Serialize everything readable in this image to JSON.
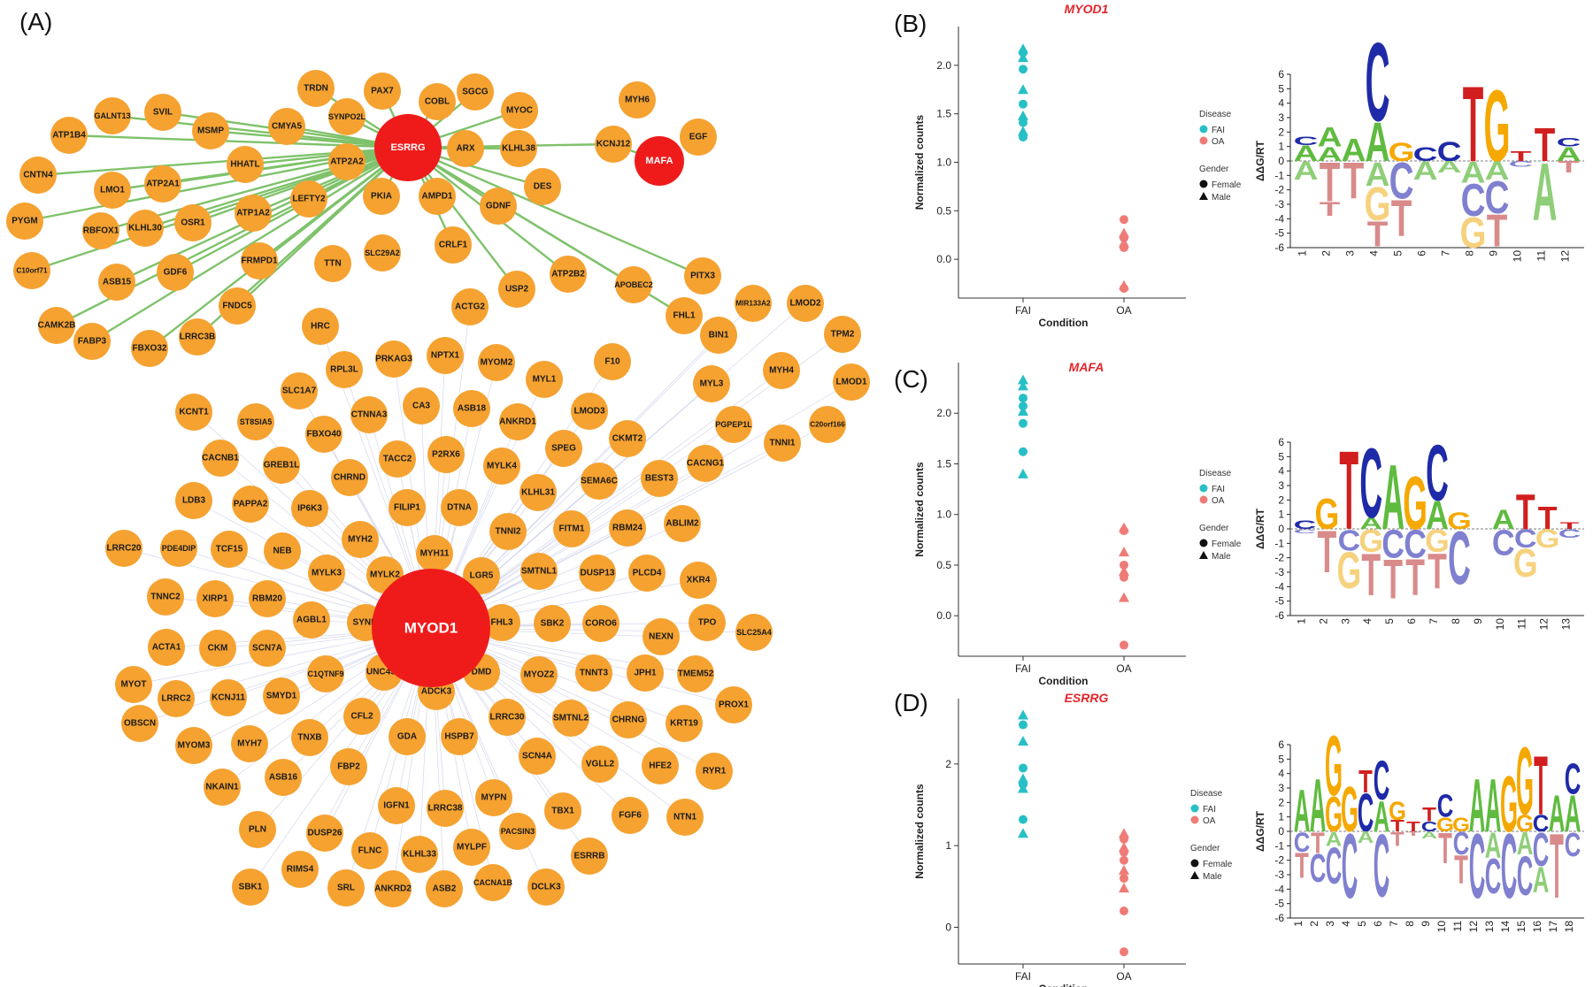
{
  "panels": {
    "A": "(A)",
    "B": "(B)",
    "C": "(C)",
    "D": "(D)"
  },
  "colors": {
    "node": "#f5a231",
    "hub": "#ef1b1b",
    "edge_green": "#7fc26b",
    "edge_faint": "#c9cde8",
    "fai": "#27bfc6",
    "oa": "#ef7b76",
    "title_red": "#e3262b"
  },
  "network": {
    "hubs": [
      {
        "id": "ESRRG",
        "label": "ESRRG"
      },
      {
        "id": "MAFA",
        "label": "MAFA"
      },
      {
        "id": "MYOD1",
        "label": "MYOD1"
      }
    ],
    "esrrg_targets": [
      "GALNT13",
      "SVIL",
      "MSMP",
      "CMYA5",
      "ATP1B4",
      "HHATL",
      "CNTN4",
      "LMO1",
      "ATP2A1",
      "ATP2A2",
      "PYGM",
      "RBFOX1",
      "KLHL30",
      "OSR1",
      "ATP1A2",
      "LEFTY2",
      "C10orf71",
      "ASB15",
      "GDF6",
      "FRMPD1",
      "CAMK2B",
      "FABP3",
      "FBXO32",
      "LRRC3B",
      "FNDC5",
      "PKIA",
      "AMPD1",
      "ARX",
      "KLHL38",
      "SYNPO2L",
      "PAX7",
      "TRDN",
      "COBL",
      "SGCG",
      "MYOC",
      "DES",
      "GDNF",
      "CRLF1",
      "USP2",
      "ATP2B2",
      "APOBEC2",
      "PITX3",
      "FHL1",
      "KCNJ12"
    ],
    "nodes": [
      "TRDN",
      "PAX7",
      "COBL",
      "SGCG",
      "SYNPO2L",
      "MYOC",
      "MYH6",
      "SVIL",
      "GALNT13",
      "MSMP",
      "CMYA5",
      "ARX",
      "KLHL38",
      "KCNJ12",
      "EGF",
      "ATP1B4",
      "HHATL",
      "ATP2A2",
      "DES",
      "CNTN4",
      "LMO1",
      "ATP2A1",
      "PKIA",
      "AMPD1",
      "GDNF",
      "PYGM",
      "RBFOX1",
      "KLHL30",
      "OSR1",
      "ATP1A2",
      "LEFTY2",
      "CRLF1",
      "C10orf71",
      "SLC29A2",
      "ASB15",
      "GDF6",
      "FRMPD1",
      "TTN",
      "APOBEC2",
      "PITX3",
      "USP2",
      "ATP2B2",
      "CAMK2B",
      "FNDC5",
      "ACTG2",
      "FABP3",
      "FBXO32",
      "LRRC3B",
      "HRC",
      "FHL1",
      "MIR133A2",
      "LMOD2",
      "BIN1",
      "TPM2",
      "RPL3L",
      "PRKAG3",
      "NPTX1",
      "MYOM2",
      "F10",
      "MYH4",
      "LMOD1",
      "MYL1",
      "MYL3",
      "KCNT1",
      "SLC1A7",
      "ST8SIA5",
      "CTNNA3",
      "CA3",
      "ASB18",
      "ANKRD1",
      "LMOD3",
      "PGPEP1L",
      "C20orf166",
      "TNNI1",
      "FBXO40",
      "CKMT2",
      "CACNB1",
      "GREB1L",
      "CHRND",
      "TACC2",
      "P2RX6",
      "MYLK4",
      "SPEG",
      "SEMA6C",
      "BEST3",
      "CACNG1",
      "LDB3",
      "PAPPA2",
      "IP6K3",
      "FILIP1",
      "DTNA",
      "KLHL31",
      "FITM1",
      "RBM24",
      "ABLIM2",
      "LRRC20",
      "PDE4DIP",
      "TCF15",
      "NEB",
      "MYH2",
      "MYH11",
      "TNNI2",
      "SMTNL1",
      "DUSP13",
      "PLCD4",
      "XKR4",
      "TNNC2",
      "XIRP1",
      "RBM20",
      "MYLK3",
      "MYLK2",
      "LGR5",
      "TPO",
      "SLC25A4",
      "AGBL1",
      "SYNM",
      "FHL3",
      "SBK2",
      "CORO6",
      "NEXN",
      "ACTA1",
      "CKM",
      "SCN7A",
      "C1QTNF9",
      "UNC45B",
      "DMD",
      "MYOZ2",
      "TNNT3",
      "JPH1",
      "TMEM52",
      "MYOT",
      "LRRC2",
      "KCNJ11",
      "SMYD1",
      "ADCK3",
      "LRRC30",
      "SMTNL2",
      "CHRNG",
      "KRT19",
      "PROX1",
      "OBSCN",
      "MYOM3",
      "MYH7",
      "TNXB",
      "CFL2",
      "GDA",
      "HSPB7",
      "SCN4A",
      "VGLL2",
      "HFE2",
      "RYR1",
      "NKAIN1",
      "ASB16",
      "FBP2",
      "IGFN1",
      "LRRC38",
      "MYPN",
      "TBX1",
      "FGF6",
      "NTN1",
      "PLN",
      "DUSP26",
      "FLNC",
      "KLHL33",
      "MYLPF",
      "PACSIN3",
      "ESRRB",
      "RIMS4",
      "SRL",
      "ANKRD2",
      "ASB2",
      "CACNA1B",
      "DCLK3",
      "SBK1"
    ]
  },
  "chart_data": [
    {
      "type": "scatter",
      "panel": "(B)",
      "title": "MYOD1",
      "xlabel": "Condition",
      "ylabel": "Normalized counts",
      "categories": [
        "FAI",
        "OA"
      ],
      "ylim": [
        -0.4,
        2.4
      ],
      "yticks": [
        "0.0",
        "0.5",
        "1.0",
        "1.5",
        "2.0"
      ],
      "legend": {
        "disease_title": "Disease",
        "disease": [
          "FAI",
          "OA"
        ],
        "gender_title": "Gender",
        "gender": [
          "Female",
          "Male"
        ]
      },
      "series": [
        {
          "name": "FAI",
          "points": [
            [
              2.17,
              "m"
            ],
            [
              2.13,
              "f"
            ],
            [
              2.08,
              "m"
            ],
            [
              1.96,
              "f"
            ],
            [
              1.75,
              "m"
            ],
            [
              1.6,
              "f"
            ],
            [
              1.48,
              "m"
            ],
            [
              1.41,
              "f"
            ],
            [
              1.32,
              "m"
            ],
            [
              1.26,
              "f"
            ]
          ]
        },
        {
          "name": "OA",
          "points": [
            [
              0.41,
              "f"
            ],
            [
              0.27,
              "m"
            ],
            [
              0.22,
              "f"
            ],
            [
              0.17,
              "m"
            ],
            [
              0.12,
              "f"
            ],
            [
              -0.27,
              "m"
            ],
            [
              -0.3,
              "f"
            ]
          ]
        }
      ]
    },
    {
      "type": "scatter",
      "panel": "(C)",
      "title": "MAFA",
      "xlabel": "Condition",
      "ylabel": "Normalized counts",
      "categories": [
        "FAI",
        "OA"
      ],
      "ylim": [
        -0.4,
        2.5
      ],
      "yticks": [
        "0.0",
        "0.5",
        "1.0",
        "1.5",
        "2.0"
      ],
      "legend": {
        "disease_title": "Disease",
        "disease": [
          "FAI",
          "OA"
        ],
        "gender_title": "Gender",
        "gender": [
          "Female",
          "Male"
        ]
      },
      "series": [
        {
          "name": "FAI",
          "points": [
            [
              2.33,
              "m"
            ],
            [
              2.27,
              "m"
            ],
            [
              2.15,
              "f"
            ],
            [
              2.07,
              "f"
            ],
            [
              2.02,
              "m"
            ],
            [
              1.9,
              "f"
            ],
            [
              1.62,
              "f"
            ],
            [
              1.4,
              "m"
            ]
          ]
        },
        {
          "name": "OA",
          "points": [
            [
              0.87,
              "m"
            ],
            [
              0.84,
              "f"
            ],
            [
              0.63,
              "m"
            ],
            [
              0.5,
              "f"
            ],
            [
              0.44,
              "m"
            ],
            [
              0.38,
              "f"
            ],
            [
              0.18,
              "m"
            ],
            [
              -0.29,
              "f"
            ]
          ]
        }
      ]
    },
    {
      "type": "scatter",
      "panel": "(D)",
      "title": "ESRRG",
      "xlabel": "Condition",
      "ylabel": "Normalized counts",
      "categories": [
        "FAI",
        "OA"
      ],
      "ylim": [
        -0.45,
        2.8
      ],
      "yticks": [
        "0",
        "1",
        "2"
      ],
      "legend": {
        "disease_title": "Disease",
        "disease": [
          "FAI",
          "OA"
        ],
        "gender_title": "Gender",
        "gender": [
          "Female",
          "Male"
        ]
      },
      "series": [
        {
          "name": "FAI",
          "points": [
            [
              2.6,
              "m"
            ],
            [
              2.48,
              "f"
            ],
            [
              2.28,
              "m"
            ],
            [
              1.95,
              "f"
            ],
            [
              1.82,
              "m"
            ],
            [
              1.75,
              "f"
            ],
            [
              1.7,
              "m"
            ],
            [
              1.32,
              "f"
            ],
            [
              1.15,
              "m"
            ]
          ]
        },
        {
          "name": "OA",
          "points": [
            [
              1.15,
              "m"
            ],
            [
              1.08,
              "f"
            ],
            [
              0.98,
              "m"
            ],
            [
              0.92,
              "f"
            ],
            [
              0.82,
              "f"
            ],
            [
              0.7,
              "m"
            ],
            [
              0.6,
              "f"
            ],
            [
              0.48,
              "m"
            ],
            [
              0.2,
              "f"
            ],
            [
              -0.3,
              "f"
            ]
          ]
        }
      ]
    }
  ],
  "logos": [
    {
      "panel": "(B)",
      "ylabel": "ΔΔG/RT",
      "yticks": [
        "6",
        "5",
        "4",
        "3",
        "2",
        "1",
        "0",
        "-1",
        "-2",
        "-3",
        "-4",
        "-5",
        "-6"
      ],
      "xticks": [
        "1",
        "2",
        "3",
        "4",
        "5",
        "6",
        "7",
        "8",
        "9",
        "10",
        "11",
        "12"
      ],
      "positive": [
        "CA",
        "AA",
        "A",
        "CA",
        "G",
        "C",
        "C",
        "T",
        "G",
        "T",
        "T",
        "CA"
      ],
      "negative": [
        "A",
        "TT",
        "T",
        "AGT",
        "CT",
        "A",
        "A",
        "ACG",
        "ACT",
        "C",
        "A",
        "T"
      ]
    },
    {
      "panel": "(C)",
      "ylabel": "ΔΔG/RT",
      "yticks": [
        "6",
        "5",
        "4",
        "3",
        "2",
        "1",
        "0",
        "-1",
        "-2",
        "-3",
        "-4",
        "-5",
        "-6"
      ],
      "xticks": [
        "1",
        "2",
        "3",
        "4",
        "5",
        "6",
        "7",
        "8",
        "9",
        "10",
        "11",
        "12",
        "13"
      ],
      "positive": [
        "C",
        "G",
        "T",
        "CA",
        "A",
        "G",
        "CA",
        "G",
        "",
        "A",
        "T",
        "T",
        "T"
      ],
      "negative": [
        "C",
        "T",
        "CG",
        "GT",
        "CT",
        "CT",
        "GT",
        "C",
        "",
        "C",
        "CG",
        "G",
        "C"
      ]
    },
    {
      "panel": "(D)",
      "ylabel": "ΔΔG/RT",
      "yticks": [
        "6",
        "5",
        "4",
        "3",
        "2",
        "1",
        "0",
        "-1",
        "-2",
        "-3",
        "-4",
        "-5",
        "-6"
      ],
      "xticks": [
        "1",
        "2",
        "3",
        "4",
        "5",
        "6",
        "7",
        "8",
        "9",
        "10",
        "11",
        "12",
        "13",
        "14",
        "15",
        "16",
        "17",
        "18"
      ],
      "positive": [
        "A",
        "A",
        "GG",
        "G",
        "TC",
        "CA",
        "GT",
        "T",
        "TC",
        "CG",
        "G",
        "A",
        "A",
        "G",
        "GG",
        "TC",
        "A",
        "CA"
      ],
      "negative": [
        "CT",
        "TC",
        "AC",
        "C",
        "A",
        "C",
        "T",
        "T",
        "A",
        "T",
        "CT",
        "C",
        "AC",
        "C",
        "AC",
        "CA",
        "T",
        "C"
      ]
    }
  ]
}
